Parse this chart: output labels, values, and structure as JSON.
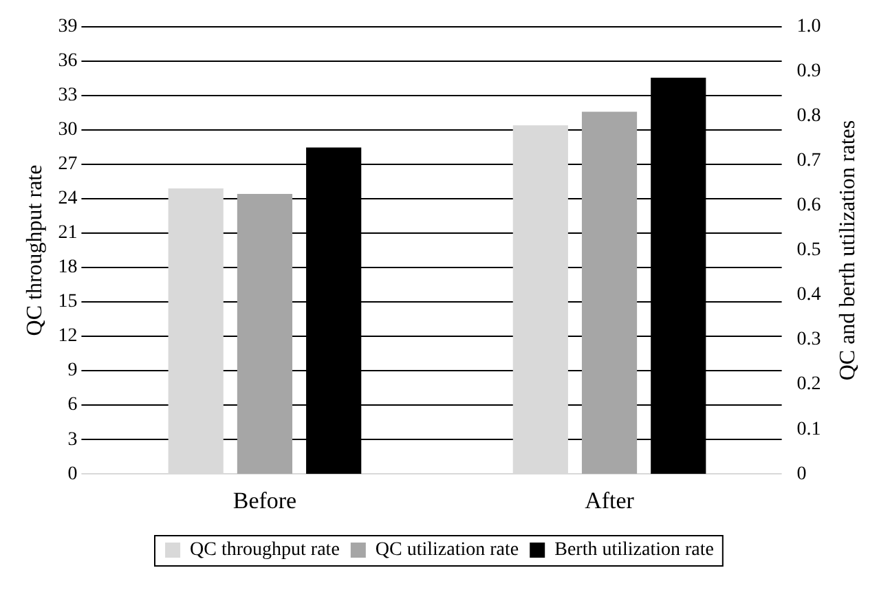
{
  "chart_data": {
    "type": "bar",
    "categories": [
      "Before",
      "After"
    ],
    "ylabel": "QC throughput rate",
    "y2label": "QC and berth utilization rates",
    "series": [
      {
        "name": "QC throughput rate",
        "color": "#d9d9d9",
        "values": [
          24.9,
          30.4
        ]
      },
      {
        "name": "QC utilization rate",
        "color": "#a6a6a6",
        "values": [
          0.626,
          0.81
        ],
        "axis": "y2"
      },
      {
        "name": "Berth utilization rate",
        "color": "#000000",
        "values": [
          0.73,
          0.886
        ],
        "axis": "y2"
      }
    ],
    "ylim": [
      0,
      39
    ],
    "yticks": [
      0,
      3,
      6,
      9,
      12,
      15,
      18,
      21,
      24,
      27,
      30,
      33,
      36,
      39
    ],
    "y2lim": [
      0,
      1
    ],
    "y2ticks": [
      0,
      {
        "value": 0.1,
        "label": "0.1"
      },
      {
        "value": 0.2,
        "label": "0.2"
      },
      {
        "value": 0.3,
        "label": "0.3"
      },
      {
        "value": 0.4,
        "label": "0.4"
      },
      {
        "value": 0.5,
        "label": "0.5"
      },
      {
        "value": 0.6,
        "label": "0.6"
      },
      {
        "value": 0.7,
        "label": "0.7"
      },
      {
        "value": 0.8,
        "label": "0.8"
      },
      {
        "value": 0.9,
        "label": "0.9"
      },
      {
        "value": 1,
        "label": "1.0"
      }
    ],
    "grid": "y",
    "legend": "bottom"
  }
}
